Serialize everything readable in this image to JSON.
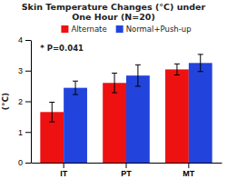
{
  "chart_data": {
    "type": "bar",
    "title": "Skin Temperature Changes (°C) under\nOne Hour (N=20)",
    "y_label": "(°C)",
    "categories": [
      "IT",
      "PT",
      "MT"
    ],
    "series": [
      {
        "name": "Alternate",
        "color": "#ee1111",
        "values": [
          1.65,
          2.6,
          3.04
        ],
        "errors": [
          0.32,
          0.32,
          0.18
        ]
      },
      {
        "name": "Normal+Push-up",
        "color": "#2244dd",
        "values": [
          2.44,
          2.84,
          3.25
        ],
        "errors": [
          0.22,
          0.35,
          0.28
        ]
      }
    ],
    "ylim": [
      0,
      4
    ],
    "yticks": [
      0,
      1,
      2,
      3,
      4
    ],
    "annotations": [
      {
        "text": "*  P=0.041"
      }
    ],
    "legend": "top",
    "grid": false
  }
}
